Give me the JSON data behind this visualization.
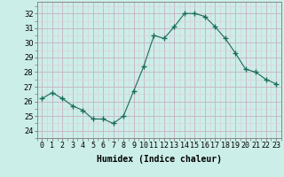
{
  "x": [
    0,
    1,
    2,
    3,
    4,
    5,
    6,
    7,
    8,
    9,
    10,
    11,
    12,
    13,
    14,
    15,
    16,
    17,
    18,
    19,
    20,
    21,
    22,
    23
  ],
  "y": [
    26.2,
    26.6,
    26.2,
    25.7,
    25.4,
    24.8,
    24.8,
    24.5,
    25.0,
    26.7,
    28.4,
    30.5,
    30.3,
    31.1,
    32.0,
    32.0,
    31.8,
    31.1,
    30.3,
    29.3,
    28.2,
    28.0,
    27.5,
    27.2
  ],
  "xlabel": "Humidex (Indice chaleur)",
  "ylim": [
    23.5,
    32.8
  ],
  "xlim": [
    -0.5,
    23.5
  ],
  "line_color": "#1a6b5a",
  "marker_color": "#1a6b5a",
  "bg_color": "#cceee8",
  "grid_color_major": "#c8b8c8",
  "grid_color_minor": "#ddd0dd",
  "yticks": [
    24,
    25,
    26,
    27,
    28,
    29,
    30,
    31,
    32
  ],
  "label_fontsize": 7,
  "tick_fontsize": 6
}
